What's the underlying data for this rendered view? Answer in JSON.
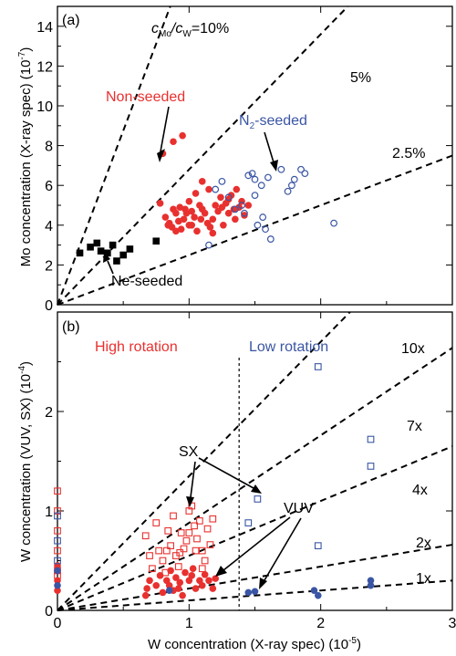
{
  "colors": {
    "red": "#e8312f",
    "blue": "#3a55a4",
    "black": "#000000"
  },
  "chart_data": [
    {
      "type": "scatter",
      "panel_label": "(a)",
      "xlim": [
        0,
        3
      ],
      "ylim": [
        0,
        15
      ],
      "ylabel": "Mo concentration (X-ray spec) (10",
      "ylabel_exp": "-7",
      "ylabel_close": ")",
      "yticks": [
        0,
        2,
        4,
        6,
        8,
        10,
        12,
        14
      ],
      "ytick_labels": [
        "0",
        "2",
        "4",
        "6",
        "8",
        "10",
        "12",
        "14"
      ],
      "xticks": [
        0,
        1,
        2,
        3
      ],
      "ratio_lines": [
        {
          "label_main": "c",
          "label_sub1": "Mo",
          "label_slash": "/c",
          "label_sub2": "W",
          "label_tail": "=10%",
          "slope": 17.5
        },
        {
          "label": "5%",
          "slope": 6.8
        },
        {
          "label": "2.5%",
          "slope": 2.5
        }
      ],
      "series": [
        {
          "name": "Non-seeded",
          "marker": "filled-circle",
          "color": "#e8312f",
          "points": [
            [
              0.8,
              7.6
            ],
            [
              0.88,
              8.2
            ],
            [
              0.95,
              8.5
            ],
            [
              0.78,
              5.1
            ],
            [
              0.82,
              4.4
            ],
            [
              0.85,
              4.1
            ],
            [
              0.87,
              3.9
            ],
            [
              0.9,
              4.6
            ],
            [
              0.92,
              4.2
            ],
            [
              0.94,
              3.8
            ],
            [
              0.97,
              4.8
            ],
            [
              1.0,
              5.2
            ],
            [
              1.02,
              4.0
            ],
            [
              1.04,
              4.4
            ],
            [
              1.06,
              3.7
            ],
            [
              1.08,
              5.0
            ],
            [
              1.1,
              6.2
            ],
            [
              1.12,
              4.6
            ],
            [
              1.14,
              4.1
            ],
            [
              1.16,
              3.9
            ],
            [
              1.18,
              4.3
            ],
            [
              1.2,
              5.0
            ],
            [
              1.22,
              4.7
            ],
            [
              1.24,
              5.4
            ],
            [
              1.26,
              4.0
            ],
            [
              1.28,
              5.1
            ],
            [
              1.3,
              4.6
            ],
            [
              1.32,
              5.5
            ],
            [
              1.34,
              4.8
            ],
            [
              1.36,
              5.8
            ],
            [
              1.38,
              4.9
            ],
            [
              1.4,
              5.2
            ],
            [
              1.42,
              4.5
            ],
            [
              1.45,
              5.0
            ],
            [
              1.0,
              4.0
            ],
            [
              0.96,
              4.3
            ],
            [
              0.84,
              4.0
            ],
            [
              0.9,
              3.7
            ],
            [
              1.05,
              5.6
            ],
            [
              1.15,
              5.8
            ],
            [
              1.25,
              4.9
            ],
            [
              0.88,
              4.8
            ],
            [
              0.98,
              4.6
            ],
            [
              1.1,
              4.8
            ],
            [
              1.18,
              3.6
            ],
            [
              1.3,
              5.3
            ],
            [
              1.35,
              4.3
            ],
            [
              0.93,
              4.9
            ],
            [
              1.02,
              4.7
            ],
            [
              1.09,
              4.3
            ]
          ]
        },
        {
          "name": "N",
          "name_sub": "2",
          "name_tail": "-seeded",
          "marker": "open-circle",
          "color": "#3a55a4",
          "points": [
            [
              1.15,
              3.0
            ],
            [
              1.2,
              5.8
            ],
            [
              1.25,
              6.2
            ],
            [
              1.3,
              5.4
            ],
            [
              1.35,
              4.8
            ],
            [
              1.4,
              5.0
            ],
            [
              1.45,
              6.5
            ],
            [
              1.48,
              6.6
            ],
            [
              1.5,
              6.3
            ],
            [
              1.52,
              4.0
            ],
            [
              1.55,
              6.0
            ],
            [
              1.58,
              3.8
            ],
            [
              1.6,
              6.4
            ],
            [
              1.62,
              3.3
            ],
            [
              1.7,
              6.8
            ],
            [
              1.75,
              5.7
            ],
            [
              1.78,
              6.0
            ],
            [
              1.8,
              6.3
            ],
            [
              1.85,
              6.8
            ],
            [
              1.88,
              6.6
            ],
            [
              2.1,
              4.1
            ],
            [
              1.5,
              5.5
            ],
            [
              1.42,
              4.6
            ],
            [
              1.56,
              4.4
            ]
          ]
        },
        {
          "name": "Ne-seeded",
          "marker": "filled-square",
          "color": "#000000",
          "points": [
            [
              0.17,
              2.6
            ],
            [
              0.25,
              2.9
            ],
            [
              0.3,
              3.1
            ],
            [
              0.33,
              2.7
            ],
            [
              0.38,
              2.6
            ],
            [
              0.42,
              3.0
            ],
            [
              0.45,
              2.2
            ],
            [
              0.5,
              2.5
            ],
            [
              0.55,
              2.8
            ],
            [
              0.75,
              3.2
            ]
          ]
        }
      ],
      "annotations": [
        {
          "text": "Non-seeded",
          "color": "#e8312f"
        },
        {
          "text": "Ne-seeded",
          "color": "#000000"
        }
      ]
    },
    {
      "type": "scatter",
      "panel_label": "(b)",
      "xlim": [
        0,
        3
      ],
      "ylim": [
        0,
        3
      ],
      "xlabel": "W concentration (X-ray spec) (10",
      "xlabel_exp": "-5",
      "xlabel_close": ")",
      "ylabel": "W concentration (VUV, SX) (10",
      "ylabel_exp": "-4",
      "ylabel_close": ")",
      "xticks": [
        0,
        1,
        2,
        3
      ],
      "xtick_labels": [
        "0",
        "1",
        "2",
        "3"
      ],
      "yticks": [
        0,
        1,
        2
      ],
      "ytick_labels": [
        "0",
        "1",
        "2"
      ],
      "divider_x": 1.38,
      "region_labels": [
        {
          "text": "High rotation",
          "color": "#e8312f"
        },
        {
          "text": "Low rotation",
          "color": "#3a55a4"
        }
      ],
      "ratio_lines": [
        {
          "label": "10x",
          "slope": 1.35
        },
        {
          "label": "7x",
          "slope": 0.88
        },
        {
          "label": "4x",
          "slope": 0.55
        },
        {
          "label": "2x",
          "slope": 0.22
        },
        {
          "label": "1x",
          "slope": 0.1
        }
      ],
      "series": [
        {
          "name": "SX high rotation",
          "marker": "open-square",
          "color": "#e8312f",
          "points": [
            [
              0.0,
              1.2
            ],
            [
              0.0,
              1.0
            ],
            [
              0.0,
              0.8
            ],
            [
              0.0,
              0.6
            ],
            [
              0.0,
              0.4
            ],
            [
              0.0,
              0.35
            ],
            [
              0.67,
              0.75
            ],
            [
              0.7,
              0.55
            ],
            [
              0.72,
              0.42
            ],
            [
              0.75,
              0.88
            ],
            [
              0.77,
              0.6
            ],
            [
              0.8,
              0.5
            ],
            [
              0.82,
              0.38
            ],
            [
              0.84,
              0.8
            ],
            [
              0.86,
              0.65
            ],
            [
              0.88,
              0.95
            ],
            [
              0.9,
              0.55
            ],
            [
              0.92,
              0.44
            ],
            [
              0.94,
              0.78
            ],
            [
              0.96,
              0.62
            ],
            [
              0.98,
              0.7
            ],
            [
              1.0,
              1.0
            ],
            [
              1.02,
              1.05
            ],
            [
              1.04,
              0.85
            ],
            [
              1.06,
              0.72
            ],
            [
              1.08,
              0.9
            ],
            [
              1.1,
              0.6
            ],
            [
              1.12,
              0.5
            ],
            [
              1.14,
              0.82
            ],
            [
              1.16,
              0.66
            ],
            [
              1.18,
              0.92
            ],
            [
              0.83,
              0.6
            ],
            [
              1.0,
              0.78
            ],
            [
              1.1,
              0.42
            ],
            [
              0.93,
              0.58
            ],
            [
              1.05,
              0.6
            ]
          ]
        },
        {
          "name": "VUV high rotation",
          "marker": "filled-circle",
          "color": "#e8312f",
          "points": [
            [
              0.0,
              0.45
            ],
            [
              0.0,
              0.3
            ],
            [
              0.0,
              0.2
            ],
            [
              0.67,
              0.15
            ],
            [
              0.68,
              0.22
            ],
            [
              0.7,
              0.3
            ],
            [
              0.75,
              0.25
            ],
            [
              0.78,
              0.35
            ],
            [
              0.8,
              0.18
            ],
            [
              0.83,
              0.3
            ],
            [
              0.86,
              0.4
            ],
            [
              0.88,
              0.2
            ],
            [
              0.9,
              0.33
            ],
            [
              0.93,
              0.28
            ],
            [
              0.95,
              0.15
            ],
            [
              0.97,
              0.38
            ],
            [
              1.0,
              0.3
            ],
            [
              1.02,
              0.35
            ],
            [
              1.05,
              0.22
            ],
            [
              1.08,
              0.3
            ],
            [
              1.1,
              0.25
            ],
            [
              1.12,
              0.36
            ],
            [
              1.15,
              0.3
            ],
            [
              1.18,
              0.22
            ],
            [
              1.2,
              0.32
            ],
            [
              0.85,
              0.25
            ],
            [
              1.03,
              0.42
            ],
            [
              0.92,
              0.22
            ]
          ]
        },
        {
          "name": "SX low rotation",
          "marker": "open-square",
          "color": "#3a55a4",
          "points": [
            [
              0.0,
              0.95
            ],
            [
              0.0,
              0.7
            ],
            [
              0.0,
              0.5
            ],
            [
              1.45,
              0.88
            ],
            [
              1.52,
              1.12
            ],
            [
              1.98,
              2.45
            ],
            [
              1.98,
              0.65
            ],
            [
              2.38,
              1.72
            ],
            [
              2.38,
              1.45
            ]
          ]
        },
        {
          "name": "VUV low rotation",
          "marker": "filled-circle",
          "color": "#3a55a4",
          "points": [
            [
              0.0,
              0.4
            ],
            [
              0.0,
              0.25
            ],
            [
              0.85,
              0.2
            ],
            [
              1.45,
              0.18
            ],
            [
              1.5,
              0.19
            ],
            [
              1.95,
              0.2
            ],
            [
              1.98,
              0.15
            ],
            [
              2.38,
              0.3
            ],
            [
              2.38,
              0.25
            ]
          ]
        }
      ],
      "annotations": [
        {
          "text": "SX",
          "color": "#000000"
        },
        {
          "text": "VUV",
          "color": "#000000"
        }
      ]
    }
  ]
}
